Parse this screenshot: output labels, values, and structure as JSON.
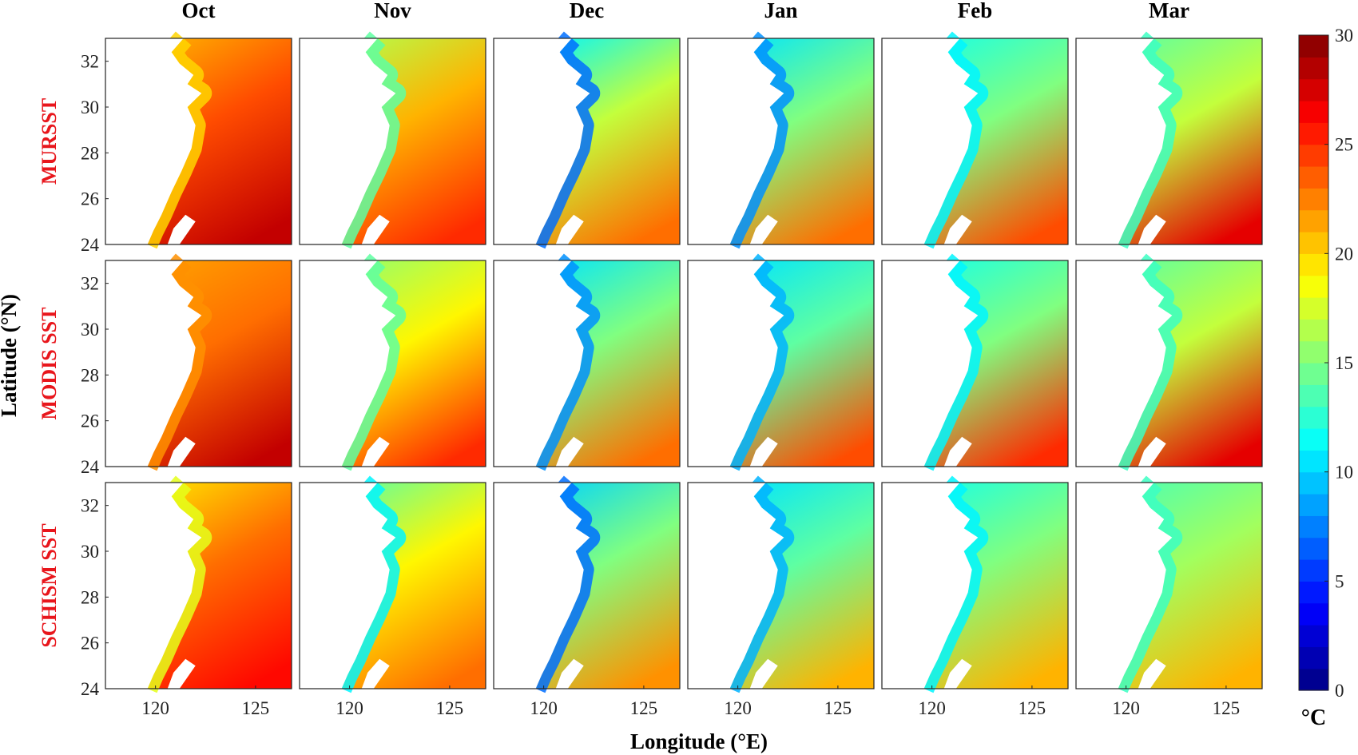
{
  "chart_data": {
    "type": "heatmap",
    "months": [
      "Oct",
      "Nov",
      "Dec",
      "Jan",
      "Feb",
      "Mar"
    ],
    "rows": [
      "MURSST",
      "MODIS SST",
      "SCHISM SST"
    ],
    "xlabel": "Longitude (°E)",
    "ylabel": "Latitude (°N)",
    "xlim": [
      117.5,
      126.8
    ],
    "ylim": [
      24,
      33
    ],
    "xticks": [
      120,
      125
    ],
    "yticks": [
      24,
      26,
      28,
      30,
      32
    ],
    "colorbar": {
      "label": "°C",
      "range": [
        0,
        30
      ],
      "ticks": [
        0,
        5,
        10,
        15,
        20,
        25,
        30
      ],
      "levels": 30,
      "colormap": "jet"
    },
    "panels_approx_sst": [
      {
        "row": "MURSST",
        "month": "Oct",
        "coastal": 20,
        "offshore_north": 22,
        "offshore_south": 28
      },
      {
        "row": "MURSST",
        "month": "Nov",
        "coastal": 14,
        "offshore_north": 19,
        "offshore_south": 25
      },
      {
        "row": "MURSST",
        "month": "Dec",
        "coastal": 7,
        "offshore_north": 15,
        "offshore_south": 23
      },
      {
        "row": "MURSST",
        "month": "Jan",
        "coastal": 8,
        "offshore_north": 13,
        "offshore_south": 23
      },
      {
        "row": "MURSST",
        "month": "Feb",
        "coastal": 11,
        "offshore_north": 13,
        "offshore_south": 24
      },
      {
        "row": "MURSST",
        "month": "Mar",
        "coastal": 13,
        "offshore_north": 15,
        "offshore_south": 27
      },
      {
        "row": "MODIS SST",
        "month": "Oct",
        "coastal": 22,
        "offshore_north": 21,
        "offshore_south": 28
      },
      {
        "row": "MODIS SST",
        "month": "Nov",
        "coastal": 14,
        "offshore_north": 17,
        "offshore_south": 25
      },
      {
        "row": "MODIS SST",
        "month": "Dec",
        "coastal": 8,
        "offshore_north": 13,
        "offshore_south": 23
      },
      {
        "row": "MODIS SST",
        "month": "Jan",
        "coastal": 9,
        "offshore_north": 12,
        "offshore_south": 24
      },
      {
        "row": "MODIS SST",
        "month": "Feb",
        "coastal": 11,
        "offshore_north": 13,
        "offshore_south": 25
      },
      {
        "row": "MODIS SST",
        "month": "Mar",
        "coastal": 13,
        "offshore_north": 15,
        "offshore_south": 27
      },
      {
        "row": "SCHISM SST",
        "month": "Oct",
        "coastal": 18,
        "offshore_north": 21,
        "offshore_south": 26
      },
      {
        "row": "SCHISM SST",
        "month": "Nov",
        "coastal": 11,
        "offshore_north": 17,
        "offshore_south": 23
      },
      {
        "row": "SCHISM SST",
        "month": "Dec",
        "coastal": 7,
        "offshore_north": 13,
        "offshore_south": 22
      },
      {
        "row": "SCHISM SST",
        "month": "Jan",
        "coastal": 9,
        "offshore_north": 12,
        "offshore_south": 21
      },
      {
        "row": "SCHISM SST",
        "month": "Feb",
        "coastal": 11,
        "offshore_north": 13,
        "offshore_south": 21
      },
      {
        "row": "SCHISM SST",
        "month": "Mar",
        "coastal": 13,
        "offshore_north": 14,
        "offshore_south": 21
      }
    ]
  }
}
